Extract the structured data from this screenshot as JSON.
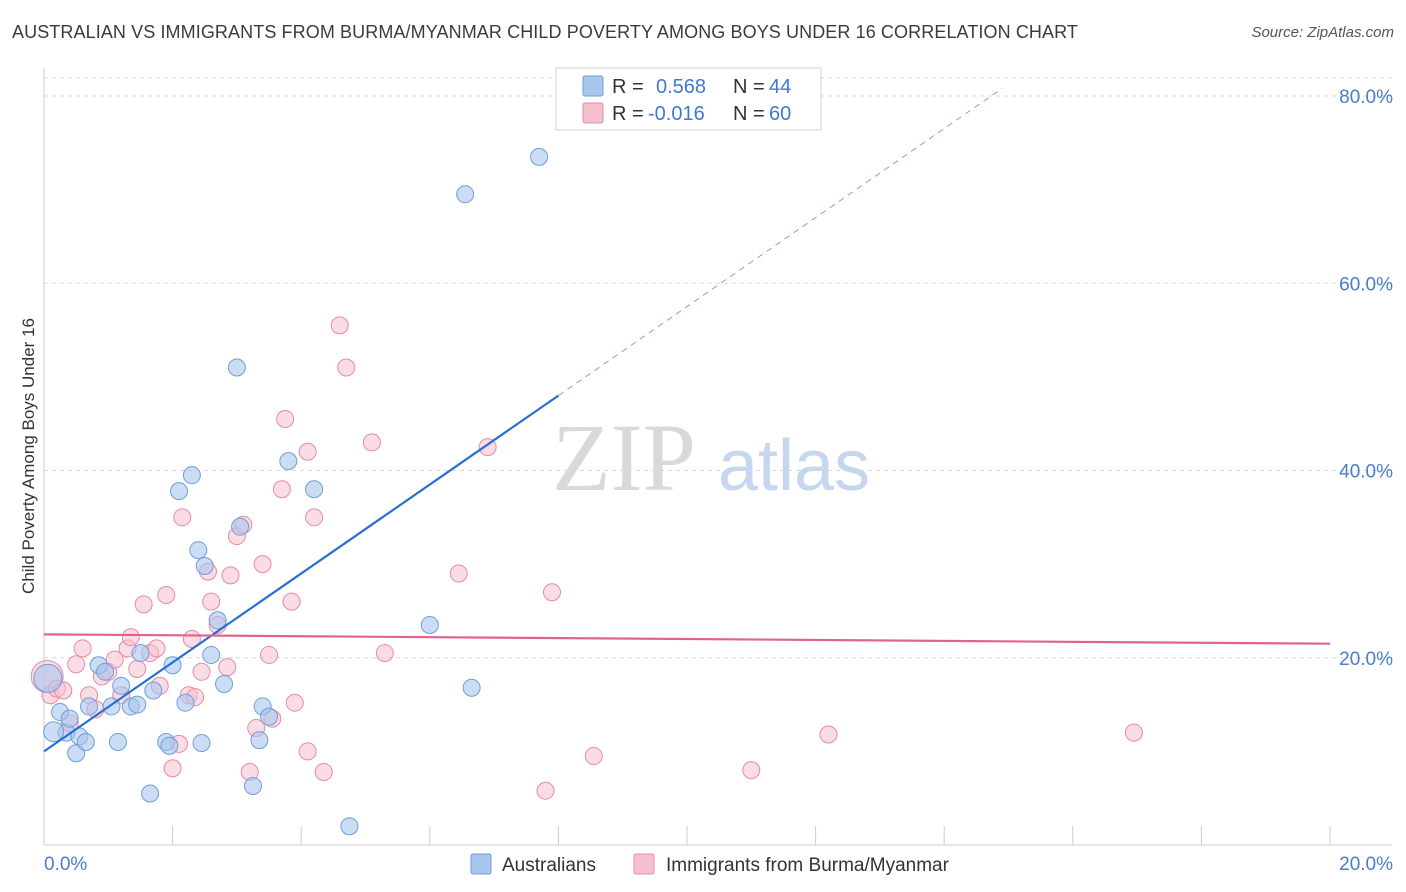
{
  "title": "AUSTRALIAN VS IMMIGRANTS FROM BURMA/MYANMAR CHILD POVERTY AMONG BOYS UNDER 16 CORRELATION CHART",
  "source": "Source: ZipAtlas.com",
  "watermark": {
    "zip": "ZIP",
    "atlas": "atlas"
  },
  "colors": {
    "blue_fill": "#a9c6ef",
    "blue_stroke": "#6f9ed9",
    "blue_line": "#2a6fd0",
    "pink_fill": "#f6bfd0",
    "pink_stroke": "#e88aa8",
    "pink_line": "#e0638f",
    "tick_text": "#4a7ecb",
    "grid": "#d8d8d8"
  },
  "legend": {
    "rows": [
      {
        "r_label": "R =",
        "r_value": "0.568",
        "n_label": "N =",
        "n_value": "44"
      },
      {
        "r_label": "R =",
        "r_value": "-0.016",
        "n_label": "N =",
        "n_value": "60"
      }
    ]
  },
  "chart_data": {
    "type": "scatter",
    "title": "AUSTRALIAN VS IMMIGRANTS FROM BURMA/MYANMAR CHILD POVERTY AMONG BOYS UNDER 16 CORRELATION CHART",
    "xlabel": "",
    "ylabel": "Child Poverty Among Boys Under 16",
    "xlim": [
      0,
      20
    ],
    "ylim": [
      0,
      82
    ],
    "x_tick_labels": [
      {
        "value": 0,
        "label": "0.0%"
      },
      {
        "value": 20,
        "label": "20.0%"
      }
    ],
    "y_tick_labels": [
      {
        "value": 20,
        "label": "20.0%"
      },
      {
        "value": 40,
        "label": "40.0%"
      },
      {
        "value": 60,
        "label": "60.0%"
      },
      {
        "value": 80,
        "label": "80.0%"
      }
    ],
    "legend_position": "bottom",
    "series": [
      {
        "name": "Australians",
        "points": [
          [
            0.06,
            17.8
          ],
          [
            0.25,
            14.2
          ],
          [
            0.35,
            12.0
          ],
          [
            0.4,
            13.5
          ],
          [
            0.55,
            11.6
          ],
          [
            0.5,
            9.8
          ],
          [
            0.65,
            11.0
          ],
          [
            0.7,
            14.8
          ],
          [
            0.85,
            19.2
          ],
          [
            0.95,
            18.5
          ],
          [
            1.15,
            11.0
          ],
          [
            1.2,
            17.0
          ],
          [
            1.35,
            14.8
          ],
          [
            1.45,
            15.0
          ],
          [
            1.5,
            20.5
          ],
          [
            1.65,
            5.5
          ],
          [
            1.7,
            16.5
          ],
          [
            1.9,
            11.0
          ],
          [
            1.95,
            10.6
          ],
          [
            2.0,
            19.2
          ],
          [
            2.1,
            37.8
          ],
          [
            2.2,
            15.2
          ],
          [
            2.3,
            39.5
          ],
          [
            2.4,
            31.5
          ],
          [
            2.45,
            10.9
          ],
          [
            2.5,
            29.8
          ],
          [
            2.6,
            20.3
          ],
          [
            2.7,
            24.0
          ],
          [
            2.8,
            17.2
          ],
          [
            3.0,
            51.0
          ],
          [
            3.05,
            34.0
          ],
          [
            3.25,
            6.3
          ],
          [
            3.35,
            11.2
          ],
          [
            3.4,
            14.8
          ],
          [
            3.5,
            13.7
          ],
          [
            3.8,
            41.0
          ],
          [
            4.2,
            38.0
          ],
          [
            4.75,
            2.0
          ],
          [
            6.0,
            23.5
          ],
          [
            6.55,
            69.5
          ],
          [
            6.65,
            16.8
          ],
          [
            7.7,
            73.5
          ],
          [
            1.05,
            14.8
          ],
          [
            0.15,
            12.1
          ]
        ]
      },
      {
        "name": "Immigrants from Burma/Myanmar",
        "points": [
          [
            0.05,
            18.0
          ],
          [
            0.1,
            16.0
          ],
          [
            0.2,
            16.7
          ],
          [
            0.3,
            16.5
          ],
          [
            0.4,
            13.0
          ],
          [
            0.5,
            19.3
          ],
          [
            0.6,
            21.0
          ],
          [
            0.7,
            16.0
          ],
          [
            0.8,
            14.5
          ],
          [
            0.9,
            18.0
          ],
          [
            1.0,
            18.5
          ],
          [
            1.1,
            19.8
          ],
          [
            1.2,
            16.0
          ],
          [
            1.3,
            21.0
          ],
          [
            1.35,
            22.2
          ],
          [
            1.45,
            18.8
          ],
          [
            1.55,
            25.7
          ],
          [
            1.65,
            20.5
          ],
          [
            1.75,
            21.0
          ],
          [
            1.8,
            17.0
          ],
          [
            1.9,
            26.7
          ],
          [
            2.0,
            8.2
          ],
          [
            2.1,
            10.8
          ],
          [
            2.15,
            35.0
          ],
          [
            2.25,
            16.0
          ],
          [
            2.35,
            15.8
          ],
          [
            2.45,
            18.5
          ],
          [
            2.55,
            29.2
          ],
          [
            2.6,
            26.0
          ],
          [
            2.7,
            23.5
          ],
          [
            2.85,
            19.0
          ],
          [
            2.9,
            28.8
          ],
          [
            3.0,
            33.0
          ],
          [
            3.1,
            34.2
          ],
          [
            3.2,
            7.8
          ],
          [
            3.3,
            12.5
          ],
          [
            3.4,
            30.0
          ],
          [
            3.5,
            20.3
          ],
          [
            3.55,
            13.5
          ],
          [
            3.7,
            38.0
          ],
          [
            3.75,
            45.5
          ],
          [
            3.85,
            26.0
          ],
          [
            3.9,
            15.2
          ],
          [
            4.1,
            10.0
          ],
          [
            4.2,
            35.0
          ],
          [
            4.35,
            7.8
          ],
          [
            4.6,
            55.5
          ],
          [
            4.7,
            51.0
          ],
          [
            5.1,
            43.0
          ],
          [
            5.3,
            20.5
          ],
          [
            6.45,
            29.0
          ],
          [
            6.9,
            42.5
          ],
          [
            7.8,
            5.8
          ],
          [
            7.9,
            27.0
          ],
          [
            8.55,
            9.5
          ],
          [
            11.0,
            8.0
          ],
          [
            12.2,
            11.8
          ],
          [
            16.95,
            12.0
          ],
          [
            4.1,
            42.0
          ],
          [
            2.3,
            22.0
          ]
        ]
      }
    ],
    "trendlines": [
      {
        "series": "Australians",
        "solid": [
          [
            0.0,
            10.0
          ],
          [
            8.0,
            48.0
          ]
        ],
        "dashed": [
          [
            8.0,
            48.0
          ],
          [
            14.9,
            80.8
          ]
        ]
      },
      {
        "series": "Immigrants from Burma/Myanmar",
        "solid": [
          [
            0.0,
            22.5
          ],
          [
            20.0,
            21.5
          ]
        ]
      }
    ]
  }
}
